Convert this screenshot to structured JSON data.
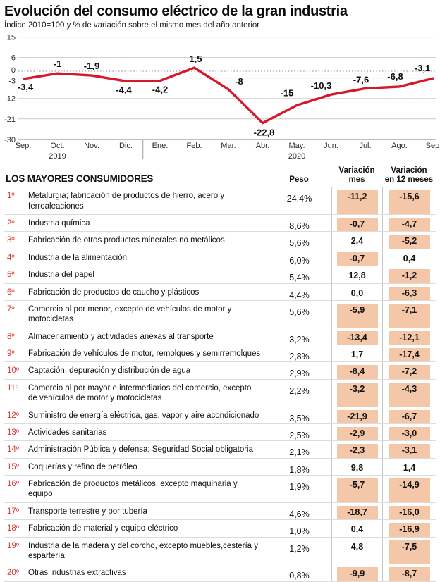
{
  "header": {
    "title": "Evolución del consumo eléctrico de la gran industria",
    "subtitle": "Índice 2010=100 y % de variación sobre el mismo mes del año anterior"
  },
  "chart_data": {
    "type": "line",
    "title": "Evolución del consumo eléctrico de la gran industria",
    "x": [
      "Sep.",
      "Oct.",
      "Nov.",
      "Dic.",
      "Ene.",
      "Feb.",
      "Mar.",
      "Abr.",
      "May.",
      "Jun.",
      "Jul.",
      "Ago.",
      "Sep."
    ],
    "values": [
      -3.4,
      -1,
      -1.9,
      -4.4,
      -4.2,
      1.5,
      -8,
      -22.8,
      -15,
      -10.3,
      -7.6,
      -6.8,
      -3.1
    ],
    "point_labels": [
      "-3,4",
      "-1",
      "-1,9",
      "-4,4",
      "-4,2",
      "1,5",
      "-8",
      "-22,8",
      "-15",
      "-10,3",
      "-7,6",
      "-6,8",
      "-3,1"
    ],
    "yticks": [
      15,
      6,
      0,
      -3,
      -12,
      -21,
      -30
    ],
    "ylim": [
      -30,
      15
    ],
    "zero_line_style": "dotted",
    "grid": true,
    "legend": "none",
    "line_color": "#d6182b",
    "year_markers": [
      {
        "label": "2019",
        "index": 1
      },
      {
        "label": "2020",
        "index": 8
      }
    ],
    "year_divider_between": [
      3,
      4
    ]
  },
  "table": {
    "section_title": "LOS MAYORES CONSUMIDORES",
    "columns": {
      "peso": "Peso",
      "var_mes": "Variación\nmes",
      "var_12m": "Variación\nen 12 meses"
    },
    "rows": [
      {
        "rank": "1º",
        "name": "Metalurgia; fabricación de productos de hierro, acero y ferroaleaciones",
        "peso": "24,4%",
        "var_mes": "-11,2",
        "var_12m": "-15,6"
      },
      {
        "rank": "2º",
        "name": "Industria química",
        "peso": "8,6%",
        "var_mes": "-0,7",
        "var_12m": "-4,7"
      },
      {
        "rank": "3º",
        "name": "Fabricación de otros productos minerales no metálicos",
        "peso": "5,6%",
        "var_mes": "2,4",
        "var_12m": "-5,2"
      },
      {
        "rank": "4º",
        "name": "Industria de la alimentación",
        "peso": "6,0%",
        "var_mes": "-0,7",
        "var_12m": "0,4"
      },
      {
        "rank": "5º",
        "name": "Industria del papel",
        "peso": "5,4%",
        "var_mes": "12,8",
        "var_12m": "-1,2"
      },
      {
        "rank": "6º",
        "name": "Fabricación de productos de caucho y plásticos",
        "peso": "4,4%",
        "var_mes": "0,0",
        "var_12m": "-6,3"
      },
      {
        "rank": "7º",
        "name": "Comercio al por menor, excepto de vehículos de motor y motocicletas",
        "peso": "5,6%",
        "var_mes": "-5,9",
        "var_12m": "-7,1"
      },
      {
        "rank": "8º",
        "name": "Almacenamiento y actividades anexas al transporte",
        "peso": "3,2%",
        "var_mes": "-13,4",
        "var_12m": "-12,1"
      },
      {
        "rank": "9º",
        "name": "Fabricación de vehículos de motor, remolques y semirremolques",
        "peso": "2,8%",
        "var_mes": "1,7",
        "var_12m": "-17,4"
      },
      {
        "rank": "10º",
        "name": "Captación, depuración y distribución de agua",
        "peso": "2,9%",
        "var_mes": "-8,4",
        "var_12m": "-7,2"
      },
      {
        "rank": "11º",
        "name": "Comercio al por mayor e intermediarios del comercio, excepto de vehículos de motor y motocicletas",
        "peso": "2,2%",
        "var_mes": "-3,2",
        "var_12m": "-4,3"
      },
      {
        "rank": "12º",
        "name": "Suministro de energía eléctrica, gas, vapor y aire acondicionado",
        "peso": "3,5%",
        "var_mes": "-21,9",
        "var_12m": "-6,7"
      },
      {
        "rank": "13º",
        "name": "Actividades sanitarias",
        "peso": "2,5%",
        "var_mes": "-2,9",
        "var_12m": "-3,0"
      },
      {
        "rank": "14º",
        "name": "Administración Pública y defensa; Seguridad Social obligatoria",
        "peso": "2,1%",
        "var_mes": "-2,3",
        "var_12m": "-3,1"
      },
      {
        "rank": "15º",
        "name": "Coquerías y refino de petróleo",
        "peso": "1,8%",
        "var_mes": "9,8",
        "var_12m": "1,4"
      },
      {
        "rank": "16º",
        "name": "Fabricación de productos metálicos, excepto maquinaria y equipo",
        "peso": "1,9%",
        "var_mes": "-5,7",
        "var_12m": "-14,9"
      },
      {
        "rank": "17º",
        "name": "Transporte terrestre y por tubería",
        "peso": "4,6%",
        "var_mes": "-18,7",
        "var_12m": "-16,0"
      },
      {
        "rank": "18º",
        "name": "Fabricación de material y equipo eléctrico",
        "peso": "1,0%",
        "var_mes": "0,4",
        "var_12m": "-16,9"
      },
      {
        "rank": "19º",
        "name": "Industria de la madera y del corcho, excepto muebles,cestería y espartería",
        "peso": "1,2%",
        "var_mes": "4,8",
        "var_12m": "-7,5"
      },
      {
        "rank": "20º",
        "name": "Otras industrias extractivas",
        "peso": "0,8%",
        "var_mes": "-9,9",
        "var_12m": "-8,7"
      }
    ]
  }
}
